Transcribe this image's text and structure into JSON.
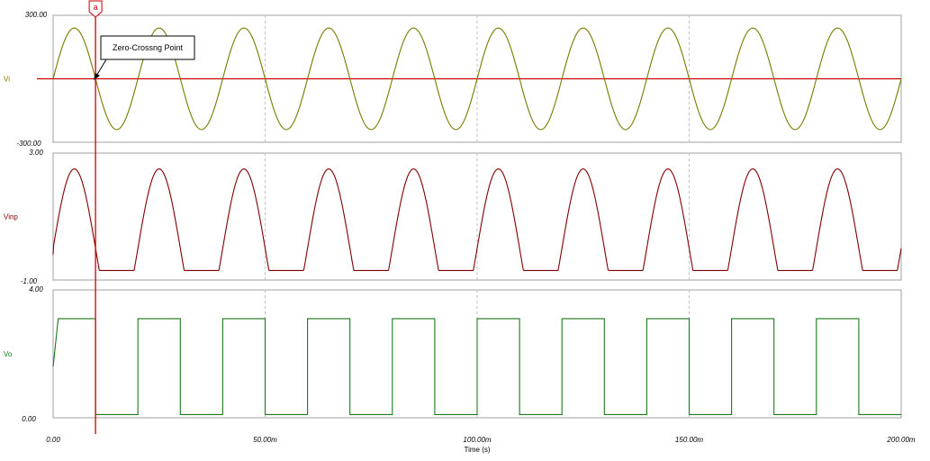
{
  "colors": {
    "vi": "#7a7a00",
    "vinp": "#800000",
    "vo": "#1a7a1a",
    "cursor": "#cc0000",
    "zero_line": "#cc0000",
    "grid": "#c0c0c0",
    "frame": "#a0a0a0"
  },
  "cursor": {
    "label": "a",
    "x": 0.01
  },
  "annotation": {
    "text": "Zero-Crossng Point"
  },
  "chart_data": {
    "type": "line",
    "xlabel": "Time (s)",
    "x_range": [
      0,
      0.2
    ],
    "x_ticks": [
      0,
      0.05,
      0.1,
      0.15,
      0.2
    ],
    "x_tick_labels": [
      "0.00",
      "50.00m",
      "100.00m",
      "150.00m",
      "200.00m"
    ],
    "grid": true,
    "panels": [
      {
        "name": "Vi",
        "ylim": [
          -300,
          300
        ],
        "y_tick_labels": [
          "300.00",
          "-300.00"
        ],
        "signal": "sine",
        "amplitude": 240,
        "frequency_hz": 50,
        "zero_line": true
      },
      {
        "name": "Vinp",
        "ylim": [
          -1,
          3
        ],
        "y_tick_labels": [
          "3.00",
          "-1.00"
        ],
        "signal": "clipped-sine",
        "amplitude": 2.5,
        "frequency_hz": 50,
        "floor": -0.7,
        "baseline_at_start": -0.2
      },
      {
        "name": "Vo",
        "ylim": [
          0,
          4
        ],
        "y_tick_labels": [
          "4.00",
          "0.00"
        ],
        "signal": "square",
        "high": 3.1,
        "low": 0.1,
        "frequency_hz": 50
      }
    ]
  }
}
